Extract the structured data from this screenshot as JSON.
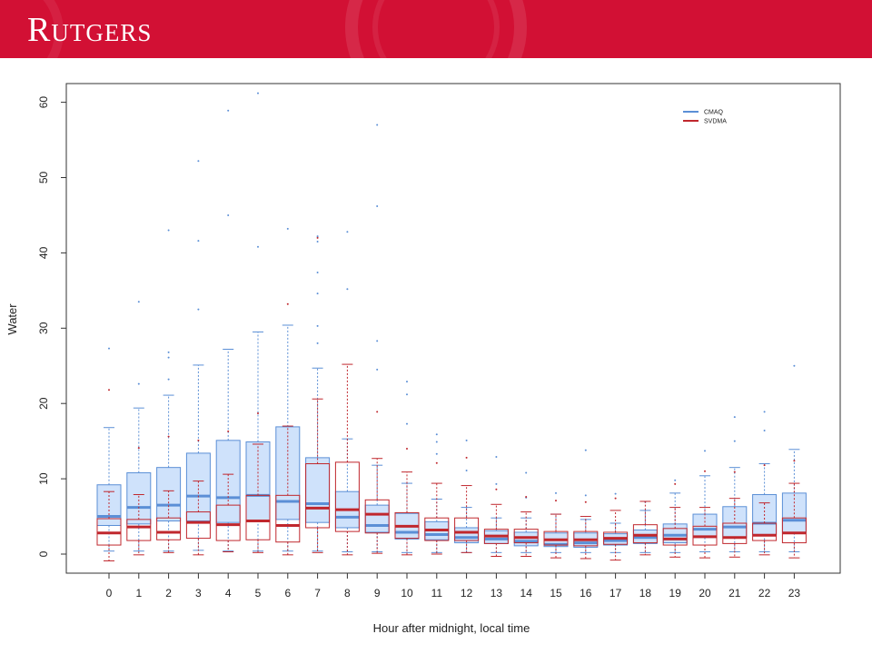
{
  "header": {
    "logo_text": "Rutgers",
    "brand_color": "#d21034"
  },
  "chart_data": {
    "type": "box",
    "title": "",
    "xlabel": "Hour after midnight, local time",
    "ylabel": "Water",
    "ylim": [
      -2.5,
      62
    ],
    "yticks": [
      0,
      10,
      20,
      30,
      40,
      50,
      60
    ],
    "categories": [
      "0",
      "1",
      "2",
      "3",
      "4",
      "5",
      "6",
      "7",
      "8",
      "9",
      "10",
      "11",
      "12",
      "13",
      "14",
      "15",
      "16",
      "17",
      "18",
      "19",
      "20",
      "21",
      "22",
      "23"
    ],
    "legend": {
      "placement": "top-right"
    },
    "series": [
      {
        "name": "CMAQ",
        "color": "#5b8fd6",
        "fill": "#cfe2fb",
        "boxes": [
          {
            "q1": 3.8,
            "median": 5.0,
            "q3": 9.2,
            "whisker_low": 0.4,
            "whisker_high": 16.8,
            "outliers": [
              27.3
            ]
          },
          {
            "q1": 4.0,
            "median": 6.2,
            "q3": 10.8,
            "whisker_low": 0.4,
            "whisker_high": 19.4,
            "outliers": [
              33.5,
              22.6
            ]
          },
          {
            "q1": 4.4,
            "median": 6.5,
            "q3": 11.5,
            "whisker_low": 0.4,
            "whisker_high": 21.1,
            "outliers": [
              43.0,
              26.8,
              26.1,
              23.2
            ]
          },
          {
            "q1": 4.4,
            "median": 7.7,
            "q3": 13.4,
            "whisker_low": 0.5,
            "whisker_high": 25.1,
            "outliers": [
              52.2,
              41.6,
              32.5
            ]
          },
          {
            "q1": 4.2,
            "median": 7.5,
            "q3": 15.1,
            "whisker_low": 0.4,
            "whisker_high": 27.2,
            "outliers": [
              58.9,
              45.0
            ]
          },
          {
            "q1": 4.5,
            "median": 7.8,
            "q3": 14.9,
            "whisker_low": 0.4,
            "whisker_high": 29.5,
            "outliers": [
              61.2,
              40.8
            ]
          },
          {
            "q1": 4.6,
            "median": 7.0,
            "q3": 16.9,
            "whisker_low": 0.4,
            "whisker_high": 30.4,
            "outliers": [
              43.2
            ]
          },
          {
            "q1": 4.2,
            "median": 6.7,
            "q3": 12.8,
            "whisker_low": 0.4,
            "whisker_high": 24.7,
            "outliers": [
              42.2,
              41.5,
              37.4,
              34.6,
              30.3,
              28.0
            ]
          },
          {
            "q1": 3.5,
            "median": 4.9,
            "q3": 8.3,
            "whisker_low": 0.3,
            "whisker_high": 15.3,
            "outliers": [
              35.2,
              42.8
            ]
          },
          {
            "q1": 2.9,
            "median": 3.8,
            "q3": 6.5,
            "whisker_low": 0.3,
            "whisker_high": 11.8,
            "outliers": [
              57.0,
              46.2,
              28.3,
              24.5
            ]
          },
          {
            "q1": 2.0,
            "median": 2.9,
            "q3": 5.4,
            "whisker_low": 0.2,
            "whisker_high": 9.4,
            "outliers": [
              22.9,
              21.2,
              17.3
            ]
          },
          {
            "q1": 1.9,
            "median": 2.6,
            "q3": 4.3,
            "whisker_low": 0.2,
            "whisker_high": 7.3,
            "outliers": [
              15.9,
              14.9,
              13.3
            ]
          },
          {
            "q1": 1.5,
            "median": 2.2,
            "q3": 3.5,
            "whisker_low": 0.2,
            "whisker_high": 6.2,
            "outliers": [
              15.1,
              11.1
            ]
          },
          {
            "q1": 1.4,
            "median": 2.0,
            "q3": 3.1,
            "whisker_low": 0.2,
            "whisker_high": 4.8,
            "outliers": [
              12.9,
              9.3
            ]
          },
          {
            "q1": 1.1,
            "median": 1.7,
            "q3": 2.9,
            "whisker_low": 0.2,
            "whisker_high": 4.8,
            "outliers": [
              10.8,
              7.5
            ]
          },
          {
            "q1": 1.0,
            "median": 1.3,
            "q3": 2.8,
            "whisker_low": 0.2,
            "whisker_high": 5.3,
            "outliers": [
              8.1
            ]
          },
          {
            "q1": 0.9,
            "median": 1.5,
            "q3": 2.8,
            "whisker_low": 0.2,
            "whisker_high": 4.6,
            "outliers": [
              13.8,
              7.8
            ]
          },
          {
            "q1": 1.2,
            "median": 1.8,
            "q3": 2.7,
            "whisker_low": 0.2,
            "whisker_high": 4.1,
            "outliers": [
              8.0
            ]
          },
          {
            "q1": 1.4,
            "median": 2.2,
            "q3": 3.2,
            "whisker_low": 0.2,
            "whisker_high": 5.8,
            "outliers": [
              6.9
            ]
          },
          {
            "q1": 1.5,
            "median": 2.5,
            "q3": 4.0,
            "whisker_low": 0.2,
            "whisker_high": 8.1,
            "outliers": [
              9.8
            ]
          },
          {
            "q1": 2.2,
            "median": 3.3,
            "q3": 5.3,
            "whisker_low": 0.3,
            "whisker_high": 10.4,
            "outliers": [
              13.7
            ]
          },
          {
            "q1": 2.2,
            "median": 3.6,
            "q3": 6.3,
            "whisker_low": 0.3,
            "whisker_high": 11.5,
            "outliers": [
              18.2,
              15.0
            ]
          },
          {
            "q1": 2.6,
            "median": 4.1,
            "q3": 7.9,
            "whisker_low": 0.3,
            "whisker_high": 12.0,
            "outliers": [
              18.9,
              16.4
            ]
          },
          {
            "q1": 2.8,
            "median": 4.5,
            "q3": 8.1,
            "whisker_low": 0.3,
            "whisker_high": 13.9,
            "outliers": [
              25.0
            ]
          }
        ]
      },
      {
        "name": "SVDMA",
        "color": "#c0272d",
        "fill": "none",
        "boxes": [
          {
            "q1": 1.2,
            "median": 2.8,
            "q3": 4.7,
            "whisker_low": -0.9,
            "whisker_high": 8.3,
            "outliers": [
              21.8
            ]
          },
          {
            "q1": 1.8,
            "median": 3.6,
            "q3": 4.6,
            "whisker_low": -0.1,
            "whisker_high": 7.9,
            "outliers": [
              14.1
            ]
          },
          {
            "q1": 1.9,
            "median": 2.9,
            "q3": 4.8,
            "whisker_low": 0.2,
            "whisker_high": 8.4,
            "outliers": [
              15.6
            ]
          },
          {
            "q1": 2.1,
            "median": 4.2,
            "q3": 5.6,
            "whisker_low": -0.1,
            "whisker_high": 9.7,
            "outliers": [
              15.1
            ]
          },
          {
            "q1": 1.8,
            "median": 3.9,
            "q3": 6.5,
            "whisker_low": 0.3,
            "whisker_high": 10.6,
            "outliers": [
              16.3
            ]
          },
          {
            "q1": 1.9,
            "median": 4.4,
            "q3": 7.8,
            "whisker_low": 0.2,
            "whisker_high": 14.6,
            "outliers": [
              18.7
            ]
          },
          {
            "q1": 1.6,
            "median": 3.8,
            "q3": 7.8,
            "whisker_low": -0.1,
            "whisker_high": 17.0,
            "outliers": [
              33.2
            ]
          },
          {
            "q1": 3.5,
            "median": 6.1,
            "q3": 12.0,
            "whisker_low": 0.2,
            "whisker_high": 20.6,
            "outliers": [
              42.0
            ]
          },
          {
            "q1": 3.0,
            "median": 5.9,
            "q3": 12.2,
            "whisker_low": -0.1,
            "whisker_high": 25.2,
            "outliers": []
          },
          {
            "q1": 2.8,
            "median": 5.3,
            "q3": 7.2,
            "whisker_low": 0.1,
            "whisker_high": 12.7,
            "outliers": [
              18.9
            ]
          },
          {
            "q1": 2.1,
            "median": 3.7,
            "q3": 5.5,
            "whisker_low": -0.1,
            "whisker_high": 10.9,
            "outliers": [
              14.0
            ]
          },
          {
            "q1": 1.8,
            "median": 3.2,
            "q3": 4.8,
            "whisker_low": 0.0,
            "whisker_high": 9.4,
            "outliers": [
              12.1
            ]
          },
          {
            "q1": 1.8,
            "median": 2.9,
            "q3": 4.8,
            "whisker_low": 0.2,
            "whisker_high": 9.1,
            "outliers": [
              12.8
            ]
          },
          {
            "q1": 1.4,
            "median": 2.4,
            "q3": 3.3,
            "whisker_low": -0.3,
            "whisker_high": 6.6,
            "outliers": [
              8.6
            ]
          },
          {
            "q1": 1.5,
            "median": 2.2,
            "q3": 3.3,
            "whisker_low": -0.3,
            "whisker_high": 5.6,
            "outliers": [
              7.6
            ]
          },
          {
            "q1": 1.2,
            "median": 1.9,
            "q3": 3.0,
            "whisker_low": -0.5,
            "whisker_high": 5.3,
            "outliers": [
              7.1
            ]
          },
          {
            "q1": 1.1,
            "median": 1.9,
            "q3": 3.0,
            "whisker_low": -0.6,
            "whisker_high": 5.0,
            "outliers": [
              6.9
            ]
          },
          {
            "q1": 1.3,
            "median": 2.1,
            "q3": 2.9,
            "whisker_low": -0.8,
            "whisker_high": 5.8,
            "outliers": [
              7.4
            ]
          },
          {
            "q1": 1.5,
            "median": 2.5,
            "q3": 3.9,
            "whisker_low": -0.1,
            "whisker_high": 7.0,
            "outliers": []
          },
          {
            "q1": 1.2,
            "median": 2.0,
            "q3": 3.4,
            "whisker_low": -0.4,
            "whisker_high": 6.2,
            "outliers": [
              9.3
            ]
          },
          {
            "q1": 1.2,
            "median": 2.3,
            "q3": 3.7,
            "whisker_low": -0.5,
            "whisker_high": 6.2,
            "outliers": [
              11.0
            ]
          },
          {
            "q1": 1.4,
            "median": 2.2,
            "q3": 4.1,
            "whisker_low": -0.4,
            "whisker_high": 7.4,
            "outliers": [
              10.9
            ]
          },
          {
            "q1": 1.8,
            "median": 2.5,
            "q3": 4.1,
            "whisker_low": -0.1,
            "whisker_high": 6.8,
            "outliers": [
              11.8
            ]
          },
          {
            "q1": 1.5,
            "median": 2.8,
            "q3": 4.8,
            "whisker_low": -0.5,
            "whisker_high": 9.4,
            "outliers": [
              12.4
            ]
          }
        ]
      }
    ]
  }
}
